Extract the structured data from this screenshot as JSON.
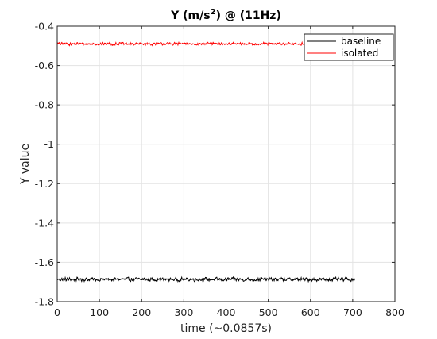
{
  "chart_data": {
    "type": "line",
    "title": {
      "main": "Y (m/s",
      "sup": "2",
      "tail": ") @ (11Hz)"
    },
    "xlabel": "time (~0.0857s)",
    "ylabel": "Y value",
    "xlim": [
      0,
      800
    ],
    "ylim": [
      -1.8,
      -0.4
    ],
    "xticks": [
      0,
      100,
      200,
      300,
      400,
      500,
      600,
      700,
      800
    ],
    "yticks": [
      -1.8,
      -1.6,
      -1.4,
      -1.2,
      -1,
      -0.8,
      -0.6,
      -0.4
    ],
    "xtick_labels": [
      "0",
      "100",
      "200",
      "300",
      "400",
      "500",
      "600",
      "700",
      "800"
    ],
    "ytick_labels": [
      "-1.8",
      "-1.6",
      "-1.4",
      "-1.2",
      "-1",
      "-0.8",
      "-0.6",
      "-0.4"
    ],
    "grid": true,
    "legend_position": "top-right",
    "series": [
      {
        "name": "baseline",
        "color": "#000000",
        "x_start": 0,
        "x_end": 705,
        "mean": -1.687,
        "noise_amplitude": 0.012
      },
      {
        "name": "isolated",
        "color": "#ff0000",
        "x_start": 0,
        "x_end": 705,
        "mean": -0.49,
        "noise_amplitude": 0.009
      }
    ]
  }
}
